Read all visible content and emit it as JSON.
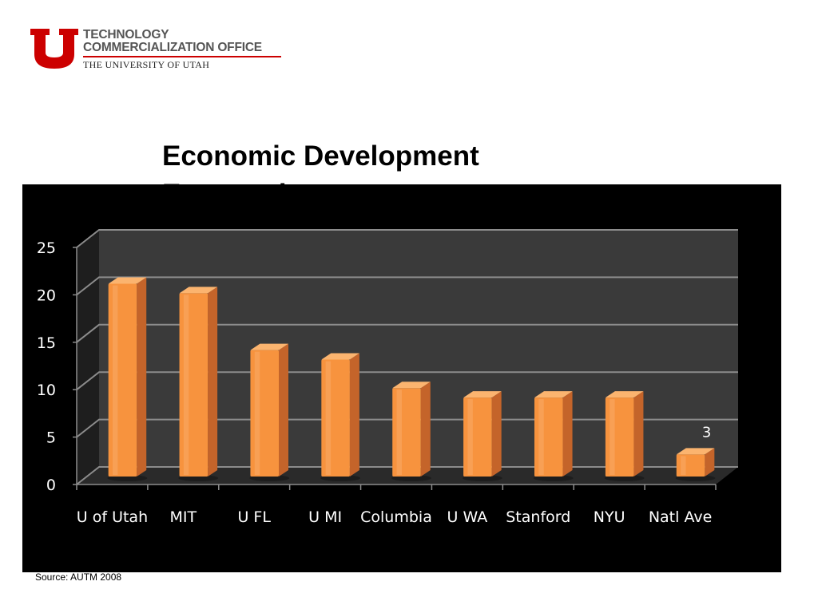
{
  "logo": {
    "line1": "TECHNOLOGY",
    "line2": "COMMERCIALIZATION OFFICE",
    "line3": "THE UNIVERSITY OF UTAH",
    "brand_color": "#cc0000"
  },
  "slide": {
    "title": "Economic Development Expectations",
    "source": "Source: AUTM 2008"
  },
  "chart_data": {
    "type": "bar",
    "style": "3d-column",
    "categories": [
      "U of Utah",
      "MIT",
      "U FL",
      "U MI",
      "Columbia",
      "U WA",
      "Stanford",
      "NYU",
      "Natl Ave"
    ],
    "values": [
      21,
      20,
      14,
      13,
      10,
      9,
      9,
      9,
      3
    ],
    "data_labels": [
      {
        "category": "Natl Ave",
        "text": "3"
      }
    ],
    "title": "",
    "xlabel": "",
    "ylabel": "",
    "ylim": [
      0,
      25
    ],
    "yticks": [
      0,
      5,
      10,
      15,
      20,
      25
    ],
    "grid": true,
    "legend": "none",
    "colors": {
      "bar": "#f7933e",
      "bar_side": "#c4642a",
      "bar_top": "#fbb46f",
      "background": "#000000",
      "back_wall": "#3a3a3a",
      "floor": "#2a2a2a",
      "gridline": "#8c8c8c",
      "text": "#ffffff"
    }
  }
}
